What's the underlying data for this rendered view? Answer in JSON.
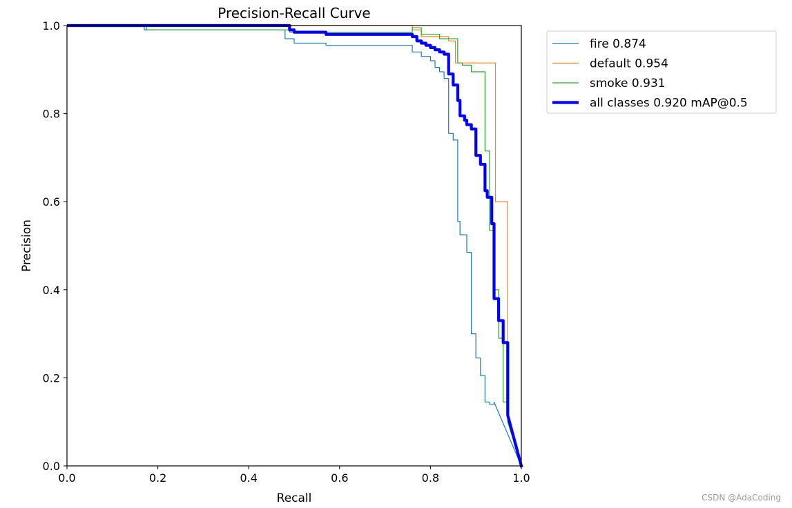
{
  "chart_data": {
    "type": "line",
    "title": "Precision-Recall Curve",
    "xlabel": "Recall",
    "ylabel": "Precision",
    "xlim": [
      0,
      1
    ],
    "ylim": [
      0,
      1
    ],
    "xticks": [
      "0.0",
      "0.2",
      "0.4",
      "0.6",
      "0.8",
      "1.0"
    ],
    "yticks": [
      "0.0",
      "0.2",
      "0.4",
      "0.6",
      "0.8",
      "1.0"
    ],
    "grid": false,
    "legend_position": "outside-upper-right",
    "series": [
      {
        "name": "fire 0.874",
        "color": "#1f77b4",
        "width": 1.2,
        "x": [
          0,
          0.17,
          0.17,
          0.48,
          0.48,
          0.5,
          0.5,
          0.57,
          0.57,
          0.76,
          0.76,
          0.78,
          0.78,
          0.8,
          0.8,
          0.81,
          0.81,
          0.82,
          0.82,
          0.83,
          0.83,
          0.84,
          0.84,
          0.85,
          0.85,
          0.86,
          0.86,
          0.865,
          0.865,
          0.88,
          0.88,
          0.89,
          0.89,
          0.9,
          0.9,
          0.91,
          0.91,
          0.92,
          0.92,
          0.93,
          0.93,
          0.94,
          0.94,
          1.0
        ],
        "y": [
          1.0,
          1.0,
          0.99,
          0.99,
          0.97,
          0.97,
          0.96,
          0.96,
          0.955,
          0.955,
          0.94,
          0.94,
          0.93,
          0.93,
          0.92,
          0.92,
          0.905,
          0.905,
          0.895,
          0.895,
          0.88,
          0.88,
          0.755,
          0.755,
          0.74,
          0.74,
          0.555,
          0.555,
          0.525,
          0.525,
          0.485,
          0.485,
          0.3,
          0.3,
          0.245,
          0.245,
          0.205,
          0.205,
          0.145,
          0.145,
          0.14,
          0.14,
          0.145,
          0.0
        ]
      },
      {
        "name": "default 0.954",
        "color": "#ff7f0e",
        "width": 1.2,
        "x": [
          0,
          0.76,
          0.76,
          0.78,
          0.78,
          0.84,
          0.84,
          0.855,
          0.855,
          0.88,
          0.88,
          0.935,
          0.935,
          0.943,
          0.943,
          0.97,
          0.97,
          1.0
        ],
        "y": [
          1.0,
          1.0,
          0.99,
          0.99,
          0.975,
          0.975,
          0.965,
          0.965,
          0.915,
          0.915,
          0.915,
          0.915,
          0.915,
          0.915,
          0.6,
          0.6,
          0.12,
          0.0
        ]
      },
      {
        "name": "smoke 0.931",
        "color": "#2ca02c",
        "width": 1.2,
        "x": [
          0,
          0.175,
          0.175,
          0.49,
          0.49,
          0.76,
          0.76,
          0.78,
          0.78,
          0.82,
          0.82,
          0.86,
          0.86,
          0.87,
          0.87,
          0.89,
          0.89,
          0.92,
          0.92,
          0.93,
          0.93,
          0.94,
          0.94,
          0.95,
          0.95,
          0.96,
          0.96,
          0.97,
          0.97,
          1.0
        ],
        "y": [
          1.0,
          1.0,
          0.99,
          0.99,
          0.985,
          0.985,
          0.995,
          0.995,
          0.98,
          0.98,
          0.97,
          0.97,
          0.915,
          0.915,
          0.91,
          0.91,
          0.895,
          0.895,
          0.715,
          0.715,
          0.535,
          0.535,
          0.4,
          0.4,
          0.29,
          0.29,
          0.145,
          0.145,
          0.1,
          0.0
        ]
      },
      {
        "name": "all classes 0.920 mAP@0.5",
        "color": "#0000ff",
        "width": 4.2,
        "x": [
          0,
          0.49,
          0.49,
          0.5,
          0.5,
          0.57,
          0.57,
          0.76,
          0.76,
          0.77,
          0.77,
          0.78,
          0.78,
          0.79,
          0.79,
          0.8,
          0.8,
          0.81,
          0.81,
          0.82,
          0.82,
          0.83,
          0.83,
          0.84,
          0.84,
          0.85,
          0.85,
          0.86,
          0.86,
          0.865,
          0.865,
          0.875,
          0.875,
          0.88,
          0.88,
          0.89,
          0.89,
          0.9,
          0.9,
          0.91,
          0.91,
          0.92,
          0.92,
          0.925,
          0.925,
          0.935,
          0.935,
          0.94,
          0.94,
          0.95,
          0.95,
          0.96,
          0.96,
          0.97,
          0.97,
          1.0
        ],
        "y": [
          1.0,
          1.0,
          0.99,
          0.99,
          0.985,
          0.985,
          0.98,
          0.98,
          0.975,
          0.975,
          0.965,
          0.965,
          0.96,
          0.96,
          0.955,
          0.955,
          0.95,
          0.95,
          0.945,
          0.945,
          0.94,
          0.94,
          0.935,
          0.935,
          0.89,
          0.89,
          0.865,
          0.865,
          0.83,
          0.83,
          0.795,
          0.795,
          0.785,
          0.785,
          0.775,
          0.775,
          0.765,
          0.765,
          0.705,
          0.705,
          0.685,
          0.685,
          0.625,
          0.625,
          0.61,
          0.61,
          0.55,
          0.55,
          0.38,
          0.38,
          0.33,
          0.33,
          0.28,
          0.28,
          0.115,
          0.0
        ]
      }
    ]
  },
  "watermark": "CSDN @AdaCoding"
}
